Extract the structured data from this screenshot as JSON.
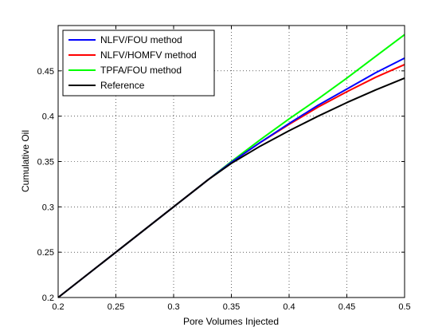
{
  "chart_data": {
    "type": "line",
    "xlabel": "Pore Volumes Injected",
    "ylabel": "Cumulative Oil",
    "xlim": [
      0.2,
      0.5
    ],
    "ylim": [
      0.2,
      0.5
    ],
    "grid": true,
    "legend_position": "top-left",
    "x_ticks": [
      "0.2",
      "0.25",
      "0.3",
      "0.35",
      "0.4",
      "0.45",
      "0.5"
    ],
    "y_ticks": [
      "0.2",
      "0.25",
      "0.3",
      "0.35",
      "0.4",
      "0.45"
    ],
    "series": [
      {
        "name": "NLFV/FOU method",
        "color": "#0000ff",
        "x": [
          0.2,
          0.25,
          0.3,
          0.33,
          0.35,
          0.375,
          0.4,
          0.425,
          0.45,
          0.475,
          0.5
        ],
        "y": [
          0.2,
          0.25,
          0.3,
          0.33,
          0.349,
          0.371,
          0.392,
          0.412,
          0.43,
          0.448,
          0.464
        ]
      },
      {
        "name": "NLFV/HOMFV method",
        "color": "#ff0000",
        "x": [
          0.2,
          0.25,
          0.3,
          0.33,
          0.35,
          0.375,
          0.4,
          0.425,
          0.45,
          0.475,
          0.5
        ],
        "y": [
          0.2,
          0.25,
          0.3,
          0.33,
          0.349,
          0.371,
          0.391,
          0.41,
          0.427,
          0.443,
          0.457
        ]
      },
      {
        "name": "TPFA/FOU method",
        "color": "#00ff00",
        "x": [
          0.2,
          0.25,
          0.3,
          0.33,
          0.35,
          0.375,
          0.4,
          0.425,
          0.45,
          0.475,
          0.5
        ],
        "y": [
          0.2,
          0.25,
          0.3,
          0.33,
          0.35,
          0.374,
          0.397,
          0.419,
          0.442,
          0.466,
          0.49
        ]
      },
      {
        "name": "Reference",
        "color": "#000000",
        "x": [
          0.2,
          0.25,
          0.3,
          0.33,
          0.35,
          0.375,
          0.4,
          0.425,
          0.45,
          0.475,
          0.5
        ],
        "y": [
          0.2,
          0.25,
          0.3,
          0.33,
          0.348,
          0.367,
          0.384,
          0.4,
          0.415,
          0.429,
          0.442
        ]
      }
    ]
  }
}
